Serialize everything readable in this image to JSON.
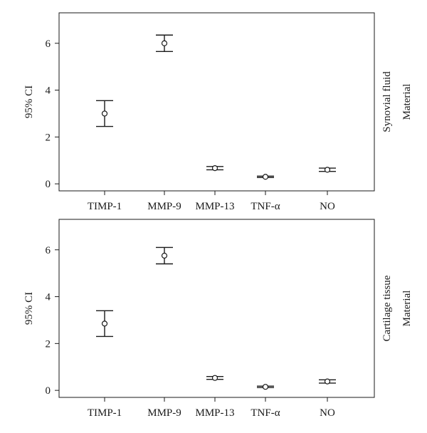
{
  "chart_data": [
    {
      "type": "scatter",
      "title": "",
      "ylabel": "95% CI",
      "facet_labels": [
        "Synovial fluid",
        "Material"
      ],
      "categories": [
        "TIMP-1",
        "MMP-9",
        "MMP-13",
        "TNF-α",
        "NO"
      ],
      "ylim": [
        -0.3,
        7.3
      ],
      "yticks": [
        0,
        2,
        4,
        6
      ],
      "series": [
        {
          "points": [
            {
              "category": "TIMP-1",
              "mean": 3.0,
              "lower": 2.45,
              "upper": 3.55
            },
            {
              "category": "MMP-9",
              "mean": 6.0,
              "lower": 5.65,
              "upper": 6.35
            },
            {
              "category": "MMP-13",
              "mean": 0.67,
              "lower": 0.6,
              "upper": 0.74
            },
            {
              "category": "TNF-α",
              "mean": 0.3,
              "lower": 0.27,
              "upper": 0.33
            },
            {
              "category": "NO",
              "mean": 0.6,
              "lower": 0.53,
              "upper": 0.67
            }
          ]
        }
      ],
      "grid": false
    },
    {
      "type": "scatter",
      "title": "",
      "ylabel": "95% CI",
      "facet_labels": [
        "Cartilage tissue",
        "Material"
      ],
      "categories": [
        "TIMP-1",
        "MMP-9",
        "MMP-13",
        "TNF-α",
        "NO"
      ],
      "ylim": [
        -0.3,
        7.3
      ],
      "yticks": [
        0,
        2,
        4,
        6
      ],
      "series": [
        {
          "points": [
            {
              "category": "TIMP-1",
              "mean": 2.85,
              "lower": 2.3,
              "upper": 3.4
            },
            {
              "category": "MMP-9",
              "mean": 5.75,
              "lower": 5.4,
              "upper": 6.1
            },
            {
              "category": "MMP-13",
              "mean": 0.53,
              "lower": 0.47,
              "upper": 0.59
            },
            {
              "category": "TNF-α",
              "mean": 0.15,
              "lower": 0.12,
              "upper": 0.18
            },
            {
              "category": "NO",
              "mean": 0.38,
              "lower": 0.31,
              "upper": 0.45
            }
          ]
        }
      ],
      "grid": false
    }
  ]
}
